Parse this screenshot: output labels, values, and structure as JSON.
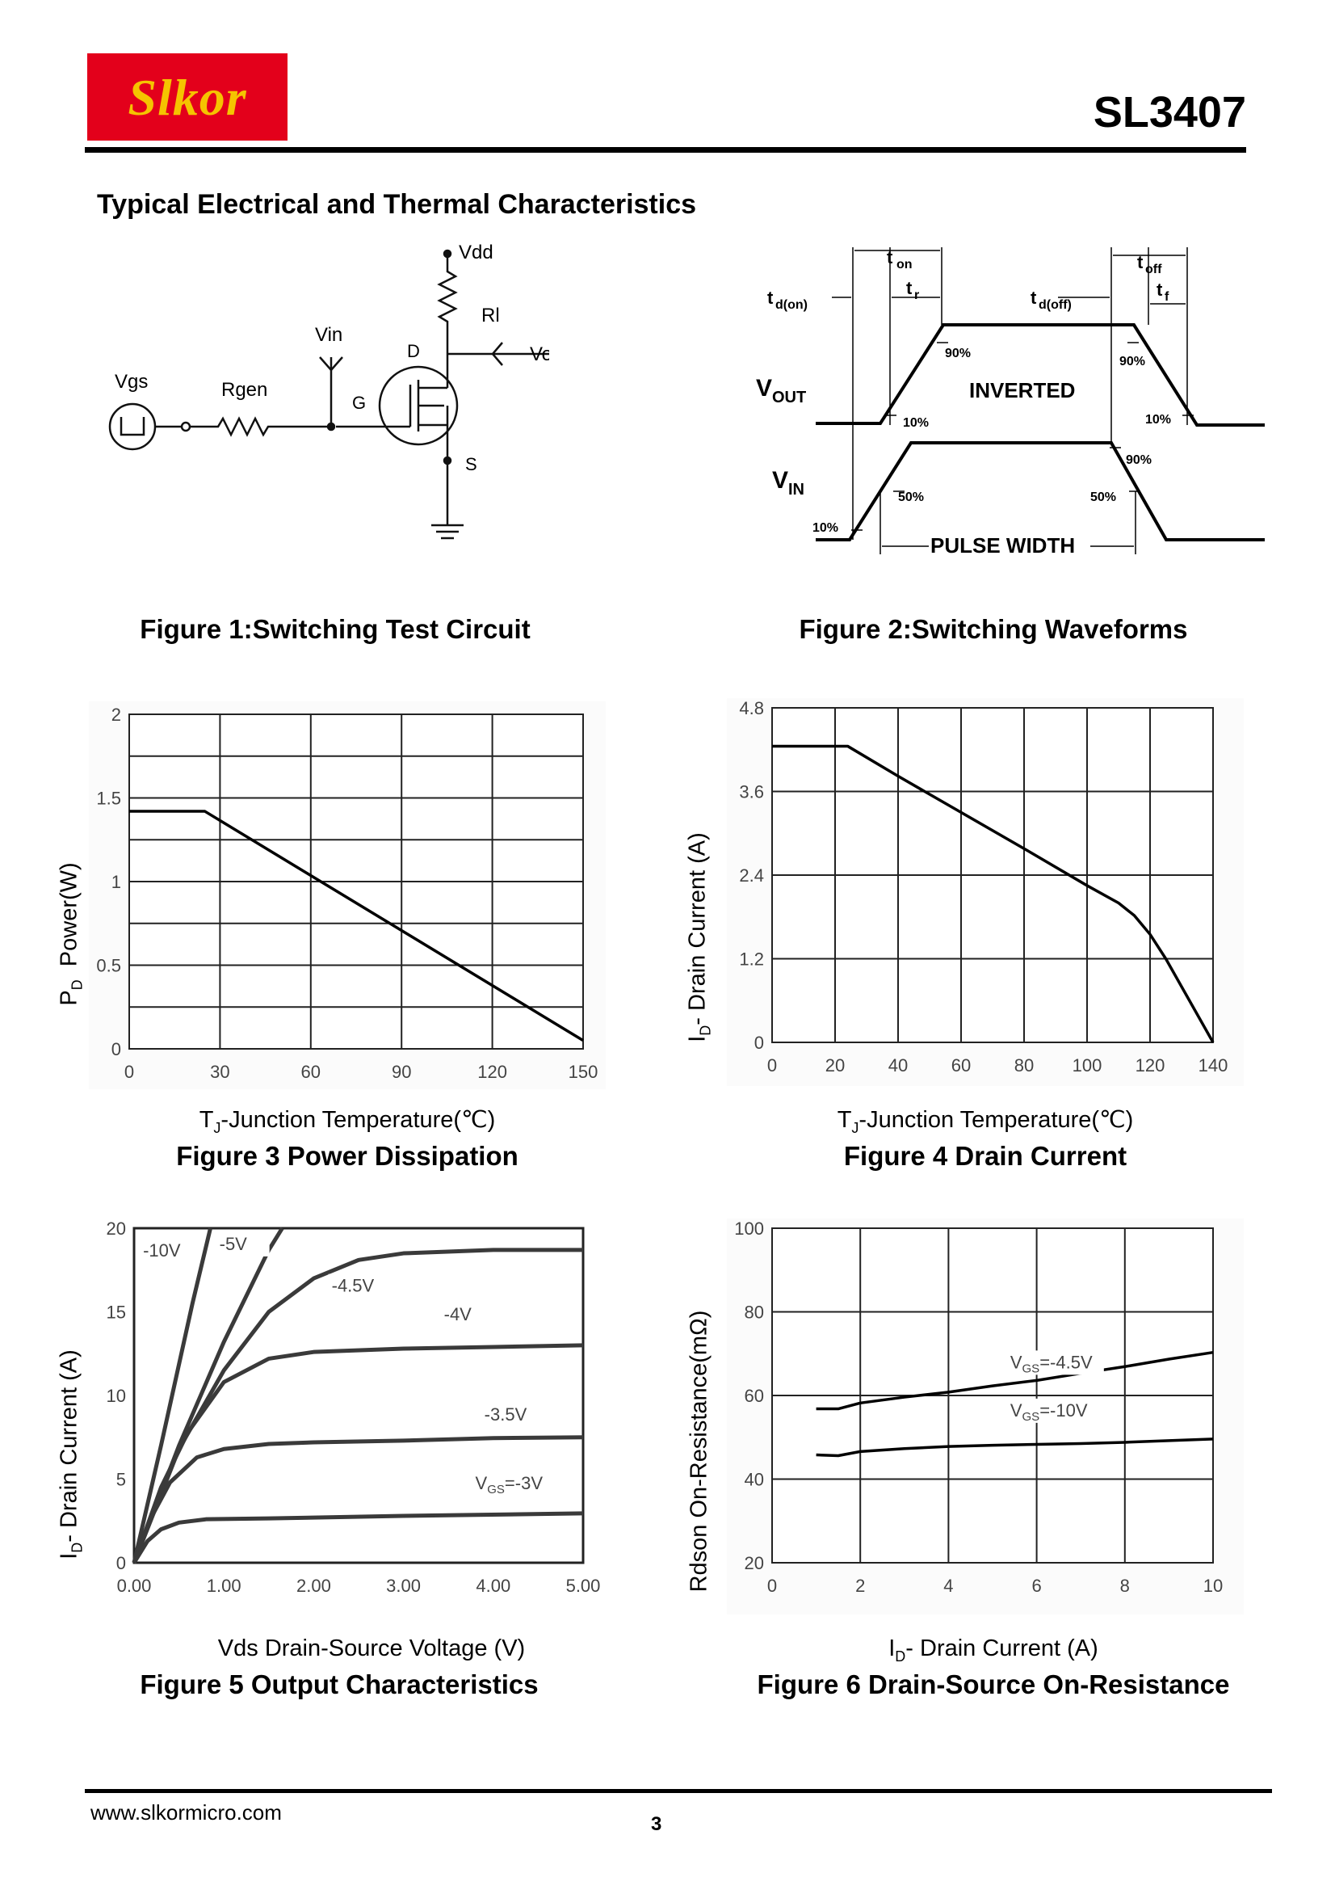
{
  "header": {
    "brand": "Slkor",
    "part_number": "SL3407"
  },
  "section_title": "Typical Electrical and Thermal Characteristics",
  "figure1": {
    "caption": "Figure 1:Switching Test Circuit",
    "labels": {
      "vdd": "Vdd",
      "rl": "Rl",
      "vin": "Vin",
      "vout": "Vout",
      "vgs": "Vgs",
      "rgen": "Rgen",
      "g": "G",
      "d": "D",
      "s": "S"
    }
  },
  "figure2": {
    "caption": "Figure 2:Switching Waveforms",
    "labels": {
      "ton": "t",
      "ton_sub": "on",
      "tr": "t",
      "tr_sub": "r",
      "tdon": "t",
      "tdon_sub": "d(on)",
      "tdoff": "t",
      "tdoff_sub": "d(off)",
      "toff": "t",
      "toff_sub": "off",
      "tf": "t",
      "tf_sub": "f",
      "vout": "V",
      "vout_sub": "OUT",
      "vin": "V",
      "vin_sub": "IN",
      "inverted": "INVERTED",
      "pulse_width": "PULSE WIDTH",
      "p90a": "90%",
      "p90b": "90%",
      "p10a": "10%",
      "p10b": "10%",
      "p90c": "90%",
      "p50a": "50%",
      "p50b": "50%",
      "p10c": "10%"
    }
  },
  "figure3": {
    "caption": "Figure 3 Power Dissipation",
    "ylabel_main": "P",
    "ylabel_sub": "D",
    "ylabel_rest": "  Power(W)",
    "xlabel_main": "T",
    "xlabel_sub": "J",
    "xlabel_rest": "-Junction Temperature(℃)"
  },
  "figure4": {
    "caption": "Figure 4 Drain Current",
    "ylabel_main": "I",
    "ylabel_sub": "D",
    "ylabel_rest": "- Drain Current (A)",
    "xlabel_main": "T",
    "xlabel_sub": "J",
    "xlabel_rest": "-Junction Temperature(℃)"
  },
  "figure5": {
    "caption": "Figure 5 Output Characteristics",
    "ylabel_main": "I",
    "ylabel_sub": "D",
    "ylabel_rest": "- Drain Current (A)",
    "xlabel": "Vds Drain-Source Voltage (V)"
  },
  "figure6": {
    "caption": "Figure 6 Drain-Source On-Resistance",
    "ylabel": "Rdson On-Resistance(mΩ)",
    "xlabel_main": "I",
    "xlabel_sub": "D",
    "xlabel_rest": "- Drain Current (A)"
  },
  "footer": {
    "url": "www.slkormicro.com",
    "page": "3"
  },
  "chart_data": [
    {
      "id": "figure3",
      "type": "line",
      "xlim": [
        0,
        150
      ],
      "ylim": [
        0,
        2
      ],
      "xticks": [
        0,
        30,
        60,
        90,
        120,
        150
      ],
      "yticks": [
        0,
        0.5,
        1,
        1.5,
        2
      ],
      "xtick_labels": [
        "0",
        "30",
        "60",
        "90",
        "120",
        "150"
      ],
      "ytick_labels": [
        "0",
        "0.5",
        "1",
        "1.5",
        "2"
      ],
      "grid": true,
      "series": [
        {
          "x": [
            0,
            25,
            150
          ],
          "y": [
            1.42,
            1.42,
            0.05
          ]
        }
      ]
    },
    {
      "id": "figure4",
      "type": "line",
      "xlim": [
        0,
        140
      ],
      "ylim": [
        0,
        4.8
      ],
      "xticks": [
        0,
        20,
        40,
        60,
        80,
        100,
        120,
        140
      ],
      "yticks": [
        0,
        1.2,
        2.4,
        3.6,
        4.8
      ],
      "xtick_labels": [
        "0",
        "20",
        "40",
        "60",
        "80",
        "100",
        "120",
        "140"
      ],
      "ytick_labels": [
        "0",
        "1.2",
        "2.4",
        "3.6",
        "4.8"
      ],
      "grid": true,
      "series": [
        {
          "x": [
            0,
            24,
            40,
            60,
            80,
            100,
            110,
            115,
            120,
            125,
            130,
            135,
            140
          ],
          "y": [
            4.25,
            4.25,
            3.82,
            3.3,
            2.78,
            2.25,
            2.0,
            1.82,
            1.55,
            1.2,
            0.8,
            0.4,
            0
          ]
        }
      ]
    },
    {
      "id": "figure5",
      "type": "line",
      "xlim": [
        0,
        5
      ],
      "ylim": [
        0,
        20
      ],
      "xticks": [
        0,
        1,
        2,
        3,
        4,
        5
      ],
      "yticks": [
        0,
        5,
        10,
        15,
        20
      ],
      "xtick_labels": [
        "0.00",
        "1.00",
        "2.00",
        "3.00",
        "4.00",
        "5.00"
      ],
      "ytick_labels": [
        "0",
        "5",
        "10",
        "15",
        "20"
      ],
      "grid": false,
      "series": [
        {
          "name": "-10V",
          "label": "-10V",
          "x": [
            0,
            0.3,
            0.65,
            0.85
          ],
          "y": [
            0,
            7,
            15.5,
            20
          ]
        },
        {
          "name": "-5V",
          "label": "-5V",
          "x": [
            0,
            0.5,
            1.0,
            1.5,
            1.65
          ],
          "y": [
            0,
            7,
            13.2,
            18.7,
            20
          ]
        },
        {
          "name": "-4.5V",
          "label": "-4.5V",
          "x": [
            0,
            0.5,
            1.0,
            1.5,
            2.0,
            2.5,
            3.0,
            4.0,
            5.0
          ],
          "y": [
            0,
            6.8,
            11.5,
            15,
            17,
            18.1,
            18.5,
            18.7,
            18.7
          ]
        },
        {
          "name": "-4V",
          "label": "-4V",
          "x": [
            0,
            0.3,
            0.6,
            1.0,
            1.5,
            2.0,
            3.0,
            4.0,
            5.0
          ],
          "y": [
            0,
            4.5,
            7.8,
            10.8,
            12.2,
            12.6,
            12.8,
            12.9,
            13.0
          ]
        },
        {
          "name": "-3.5V",
          "label": "-3.5V",
          "x": [
            0,
            0.2,
            0.4,
            0.7,
            1.0,
            1.5,
            2.0,
            3.0,
            4.0,
            5.0
          ],
          "y": [
            0,
            2.8,
            4.8,
            6.3,
            6.8,
            7.1,
            7.2,
            7.3,
            7.45,
            7.5
          ]
        },
        {
          "name": "VGS=-3V",
          "label": "V",
          "label_sub": "GS",
          "label_rest": "=-3V",
          "x": [
            0,
            0.15,
            0.3,
            0.5,
            0.8,
            1.5,
            3.0,
            5.0
          ],
          "y": [
            0,
            1.3,
            2.0,
            2.4,
            2.6,
            2.65,
            2.8,
            2.95
          ]
        }
      ]
    },
    {
      "id": "figure6",
      "type": "line",
      "xlim": [
        0,
        10
      ],
      "ylim": [
        20,
        100
      ],
      "xticks": [
        0,
        2,
        4,
        6,
        8,
        10
      ],
      "yticks": [
        20,
        40,
        60,
        80,
        100
      ],
      "xtick_labels": [
        "0",
        "2",
        "4",
        "6",
        "8",
        "10"
      ],
      "ytick_labels": [
        "20",
        "40",
        "60",
        "80",
        "100"
      ],
      "grid": true,
      "series": [
        {
          "name": "VGS=-4.5V",
          "label": "V",
          "label_sub": "GS",
          "label_rest": "=-4.5V",
          "x": [
            1.0,
            1.5,
            2,
            3,
            4,
            5,
            6,
            7,
            8,
            9,
            10
          ],
          "y": [
            56.8,
            56.8,
            58.2,
            59.6,
            60.8,
            62.3,
            63.6,
            65.3,
            66.9,
            68.7,
            70.3
          ]
        },
        {
          "name": "VGS=-10V",
          "label": "V",
          "label_sub": "GS",
          "label_rest": "=-10V",
          "x": [
            1.0,
            1.5,
            2,
            3,
            4,
            5,
            6,
            7,
            8,
            9,
            10
          ],
          "y": [
            45.8,
            45.6,
            46.6,
            47.3,
            47.8,
            48.1,
            48.3,
            48.5,
            48.8,
            49.2,
            49.6
          ]
        }
      ]
    }
  ]
}
